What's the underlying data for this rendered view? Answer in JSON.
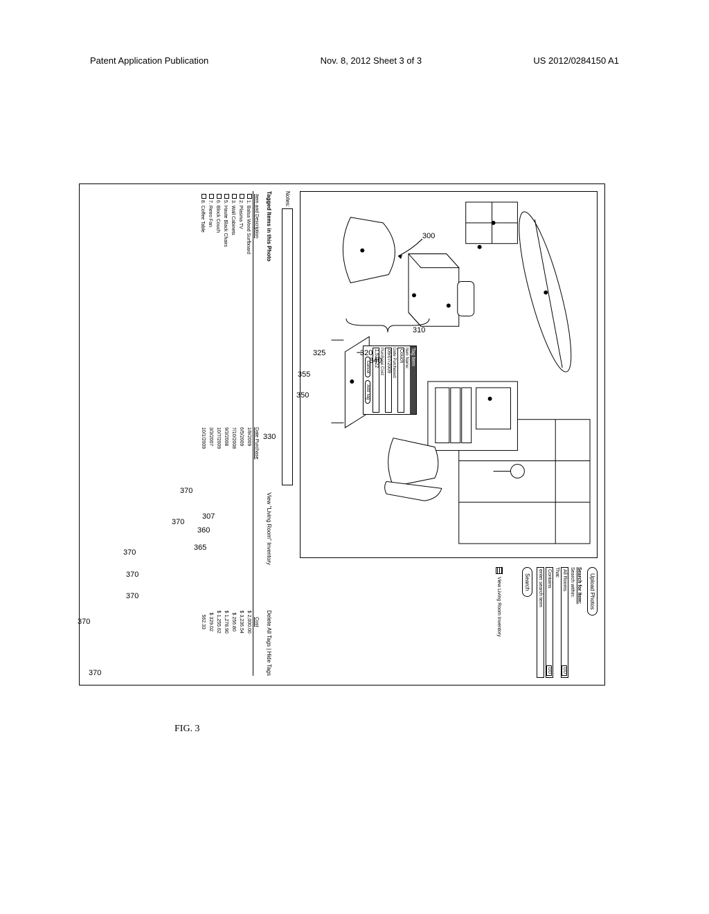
{
  "header": {
    "left": "Patent Application Publication",
    "center": "Nov. 8, 2012   Sheet 3 of 3",
    "right": "US 2012/0284150 A1"
  },
  "figure_label": "FIG. 3",
  "sidebar": {
    "upload": "Upload Photos",
    "search_for_item": "Search for Item:",
    "search_within_label": "Search within:",
    "search_within_value": "All Rooms",
    "that_label": "That:",
    "that_value": "Contains",
    "search_term_ph": "enter search term",
    "search_btn": "Search",
    "view_inventory": "View Living Room Inventory"
  },
  "notes_label": "Notes:",
  "tagged_heading": "Tagged Items in this Photo",
  "view_room_link": "View \"Living Room\" Inventory",
  "delete_hide": "Delete All Tags | Hide Tags",
  "table": {
    "col1": "Item and Description",
    "col2": "Date Purchase",
    "col3": "Cost",
    "rows": [
      {
        "idx": "1",
        "desc": "Balsa Wood Surfboard",
        "date": "1/8/2009",
        "cost": "$ 2,000.00"
      },
      {
        "idx": "2",
        "desc": "Plasma TV",
        "date": "6/5/2009",
        "cost": "$ 3,236.54"
      },
      {
        "idx": "3",
        "desc": "Wall Cabinets",
        "date": "7/10/2008",
        "cost": "$ 256.80"
      },
      {
        "idx": "5",
        "desc": "Haute Black Chairs",
        "date": "9/3/2008",
        "cost": "$ 1,278.90"
      },
      {
        "idx": "6",
        "desc": "Block Couch",
        "date": "10/7/2009",
        "cost": "$ 1,255.62"
      },
      {
        "idx": "7",
        "desc": "Retro Fan",
        "date": "3/3/2007",
        "cost": "$ 329.02"
      },
      {
        "idx": "8",
        "desc": "Coffee Table",
        "date": "10/1/2009",
        "cost": "562.33"
      }
    ]
  },
  "tag_popup": {
    "title": "Tag Item",
    "name_label": "Item Name:",
    "name_value": "Couch",
    "date_label": "Date Purchased:",
    "date_value": "09/07/2009",
    "cost_label": "Purchase Cost:",
    "cost_value": "1,521.22",
    "cancel": "Cancel",
    "add": "Add Tag"
  },
  "refs": {
    "r300": "300",
    "r307": "307",
    "r310": "310",
    "r320": "320",
    "r325": "325",
    "r330": "330",
    "r340": "340",
    "r350": "350",
    "r355": "355",
    "r360": "360",
    "r365": "365",
    "r370": "370"
  },
  "colors": {
    "stroke": "#000000",
    "bg": "#ffffff"
  }
}
